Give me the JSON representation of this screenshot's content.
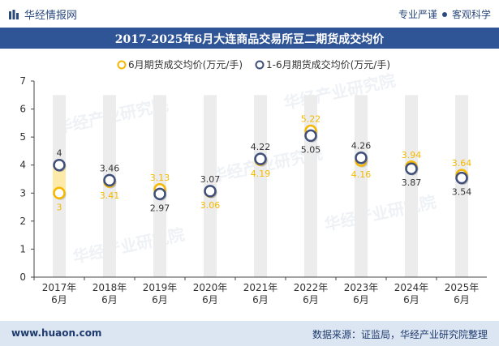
{
  "header": {
    "brand": "华经情报网",
    "slogan_left": "专业严谨",
    "slogan_right": "客观科学"
  },
  "footer": {
    "site": "www.huaon.com",
    "source": "数据来源：证监局，华经产业研究院整理"
  },
  "watermark": "华经产业研究院",
  "colors": {
    "title_bar": "#2f5597",
    "series_june": "#f5b800",
    "series_jan_jun": "#40507a",
    "band": "#ececec",
    "band_highlight": "#fde9a8",
    "footer_bg": "#dce6f2"
  },
  "chart_data": {
    "type": "line",
    "title": "2017-2025年6月大连商品交易所豆二期货成交均价",
    "categories": [
      "2017年\n6月",
      "2018年\n6月",
      "2019年\n6月",
      "2020年\n6月",
      "2021年\n6月",
      "2022年\n6月",
      "2023年\n6月",
      "2024年\n6月",
      "2025年\n6月"
    ],
    "series": [
      {
        "name": "6月期货成交均价(万元/手)",
        "values": [
          3,
          3.41,
          3.13,
          3.06,
          4.19,
          5.22,
          4.16,
          3.94,
          3.64
        ]
      },
      {
        "name": "1-6月期货成交均价(万元/手)",
        "values": [
          4,
          3.46,
          2.97,
          3.07,
          4.22,
          5.05,
          4.26,
          3.87,
          3.54
        ]
      }
    ],
    "ylim": [
      0,
      7
    ],
    "yticks": [
      0,
      1,
      2,
      3,
      4,
      5,
      6,
      7
    ],
    "legend_position": "top-center",
    "grid": false
  }
}
